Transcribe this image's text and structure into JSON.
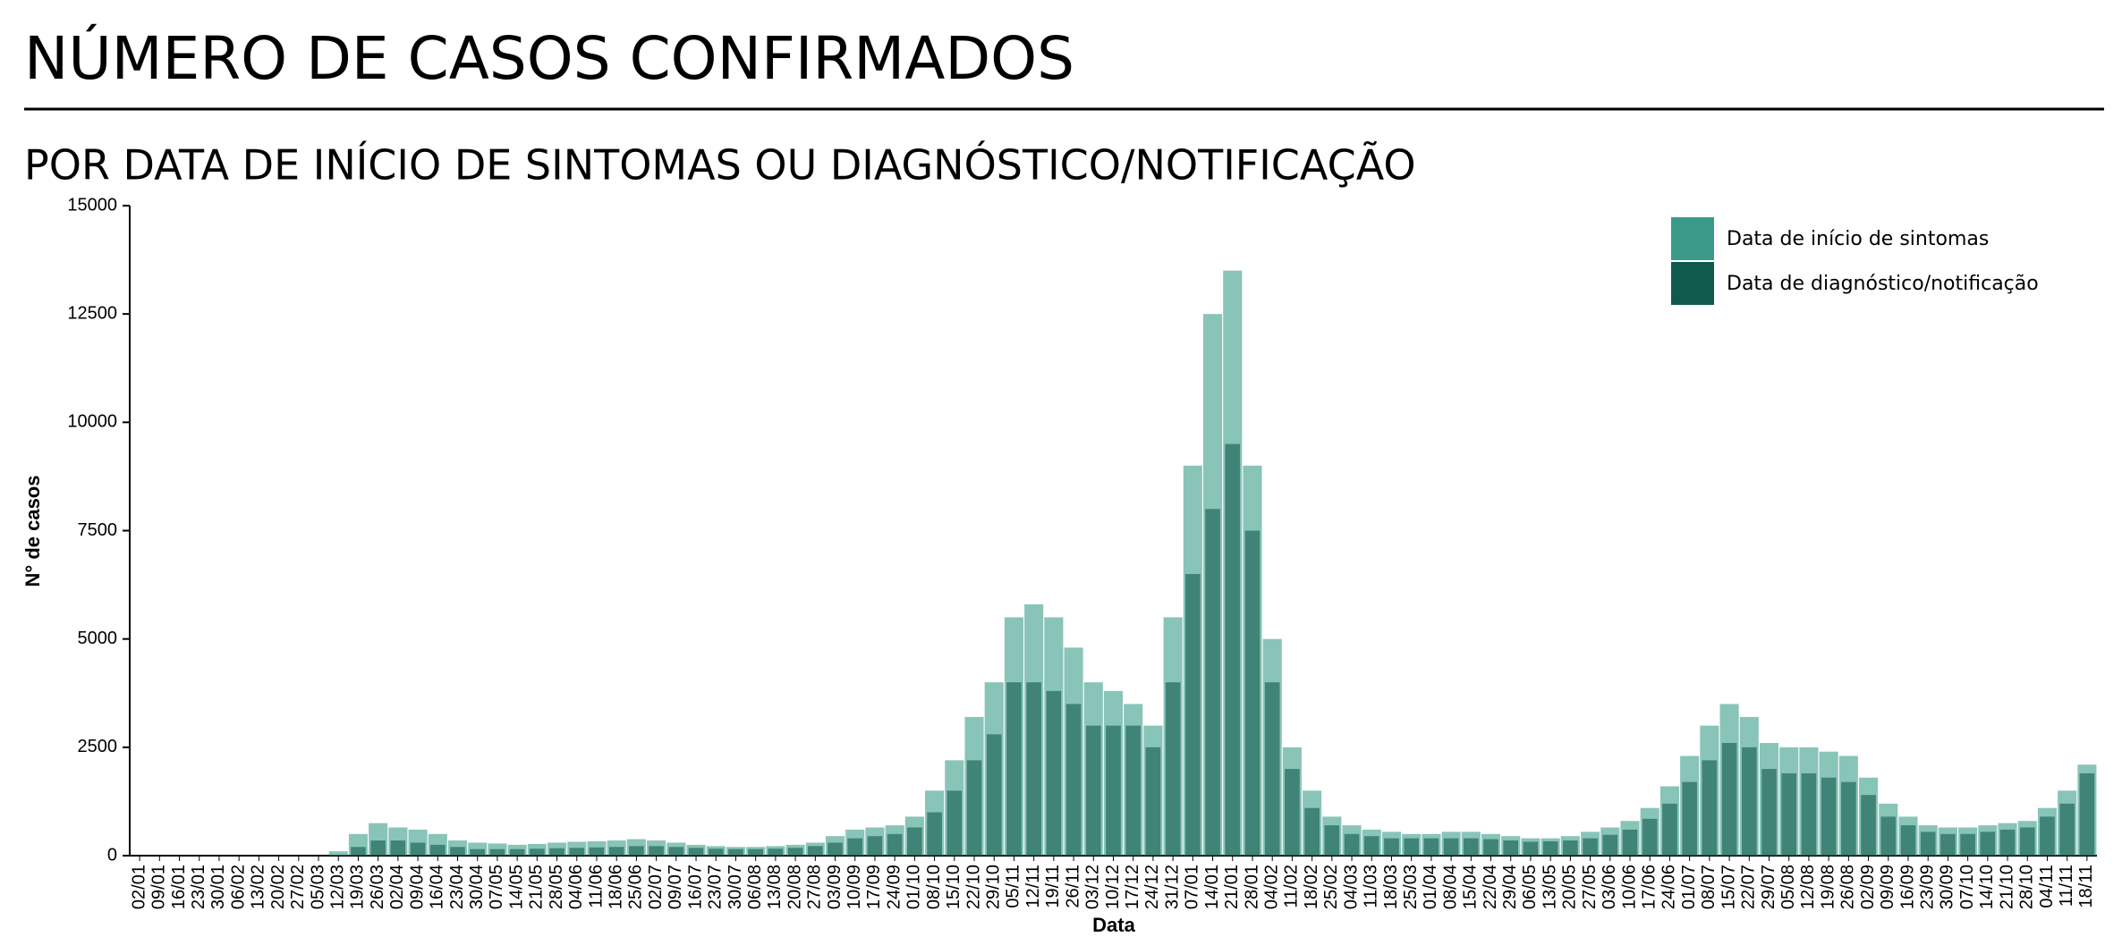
{
  "chart_data": {
    "type": "bar",
    "title": "NÚMERO DE CASOS CONFIRMADOS",
    "subtitle": "POR DATA DE INÍCIO DE SINTOMAS OU DIAGNÓSTICO/NOTIFICAÇÃO",
    "x_label": "Data",
    "y_label": "N° de casos",
    "categories": [
      "02/01",
      "09/01",
      "16/01",
      "23/01",
      "30/01",
      "06/02",
      "13/02",
      "20/02",
      "27/02",
      "05/03",
      "12/03",
      "19/03",
      "26/03",
      "02/04",
      "09/04",
      "16/04",
      "23/04",
      "30/04",
      "07/05",
      "14/05",
      "21/05",
      "28/05",
      "04/06",
      "11/06",
      "18/06",
      "25/06",
      "02/07",
      "09/07",
      "16/07",
      "23/07",
      "30/07",
      "06/08",
      "13/08",
      "20/08",
      "27/08",
      "03/09",
      "10/09",
      "17/09",
      "24/09",
      "01/10",
      "08/10",
      "15/10",
      "22/10",
      "29/10",
      "05/11",
      "12/11",
      "19/11",
      "26/11",
      "03/12",
      "10/12",
      "17/12",
      "24/12",
      "31/12",
      "07/01",
      "14/01",
      "21/01",
      "28/01",
      "04/02",
      "11/02",
      "18/02",
      "25/02",
      "04/03",
      "11/03",
      "18/03",
      "25/03",
      "01/04",
      "08/04",
      "15/04",
      "22/04",
      "29/04",
      "06/05",
      "13/05",
      "20/05",
      "27/05",
      "03/06",
      "10/06",
      "17/06",
      "24/06",
      "01/07",
      "08/07",
      "15/07",
      "22/07",
      "29/07",
      "05/08",
      "12/08",
      "19/08",
      "26/08",
      "02/09",
      "09/09",
      "16/09",
      "23/09",
      "30/09",
      "07/10",
      "14/10",
      "21/10",
      "28/10",
      "04/11",
      "11/11",
      "18/11"
    ],
    "series": [
      {
        "name": "Data de início de sintomas",
        "color": "#3a9c88",
        "values": [
          0,
          0,
          0,
          0,
          0,
          0,
          0,
          0,
          0,
          0,
          100,
          500,
          750,
          650,
          600,
          500,
          350,
          300,
          280,
          250,
          270,
          300,
          320,
          330,
          350,
          380,
          350,
          300,
          250,
          220,
          200,
          200,
          220,
          250,
          300,
          450,
          600,
          650,
          700,
          900,
          1500,
          2200,
          3200,
          4000,
          5500,
          5800,
          5500,
          4800,
          4000,
          3800,
          3500,
          3000,
          5500,
          9000,
          12500,
          13500,
          9000,
          5000,
          2500,
          1500,
          900,
          700,
          600,
          550,
          500,
          500,
          550,
          550,
          500,
          450,
          400,
          400,
          450,
          550,
          650,
          800,
          1100,
          1600,
          2300,
          3000,
          3500,
          3200,
          2600,
          2500,
          2500,
          2400,
          2300,
          1800,
          1200,
          900,
          700,
          650,
          650,
          700,
          750,
          800,
          1100,
          1500,
          2100
        ]
      },
      {
        "name": "Data de diagnóstico/notificação",
        "color": "#0f5a4d",
        "values": [
          0,
          0,
          0,
          0,
          0,
          0,
          0,
          0,
          0,
          0,
          20,
          200,
          350,
          350,
          300,
          250,
          200,
          150,
          150,
          150,
          160,
          170,
          180,
          190,
          200,
          220,
          220,
          200,
          180,
          160,
          150,
          150,
          160,
          180,
          220,
          300,
          400,
          450,
          500,
          650,
          1000,
          1500,
          2200,
          2800,
          4000,
          4000,
          3800,
          3500,
          3000,
          3000,
          3000,
          2500,
          4000,
          6500,
          8000,
          9500,
          7500,
          4000,
          2000,
          1100,
          700,
          500,
          450,
          400,
          400,
          400,
          400,
          400,
          380,
          350,
          320,
          330,
          350,
          400,
          480,
          600,
          850,
          1200,
          1700,
          2200,
          2600,
          2500,
          2000,
          1900,
          1900,
          1800,
          1700,
          1400,
          900,
          700,
          550,
          500,
          500,
          550,
          600,
          650,
          900,
          1200,
          1900
        ]
      }
    ],
    "ylim": [
      0,
      15000
    ],
    "yticks": [
      0,
      2500,
      5000,
      7500,
      10000,
      12500,
      15000
    ],
    "grid": false,
    "legend": "top-right"
  }
}
